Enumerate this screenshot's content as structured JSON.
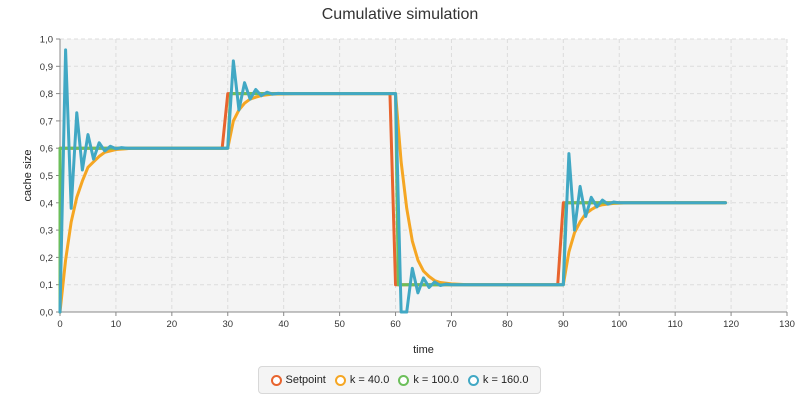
{
  "chart_data": {
    "type": "line",
    "title": "Cumulative simulation",
    "xlabel": "time",
    "ylabel": "cache size",
    "xlim": [
      0,
      130
    ],
    "ylim": [
      0,
      1
    ],
    "xticks": [
      "0",
      "10",
      "20",
      "30",
      "40",
      "50",
      "60",
      "70",
      "80",
      "90",
      "100",
      "110",
      "120",
      "130"
    ],
    "yticks": [
      "0,0",
      "0,1",
      "0,2",
      "0,3",
      "0,4",
      "0,5",
      "0,6",
      "0,7",
      "0,8",
      "0,9",
      "1,0"
    ],
    "grid": true,
    "legend_position": "bottom",
    "series": [
      {
        "name": "Setpoint",
        "color": "#e8642e",
        "points": [
          [
            0,
            0
          ],
          [
            0,
            0.6
          ],
          [
            29,
            0.6
          ],
          [
            30,
            0.8
          ],
          [
            59,
            0.8
          ],
          [
            60,
            0.1
          ],
          [
            89,
            0.1
          ],
          [
            90,
            0.4
          ],
          [
            119,
            0.4
          ]
        ]
      },
      {
        "name": "k = 40.0",
        "color": "#f5a623",
        "points": [
          [
            0,
            0
          ],
          [
            1,
            0.19
          ],
          [
            2,
            0.33
          ],
          [
            3,
            0.42
          ],
          [
            4,
            0.48
          ],
          [
            5,
            0.53
          ],
          [
            6,
            0.55
          ],
          [
            7,
            0.57
          ],
          [
            8,
            0.585
          ],
          [
            10,
            0.595
          ],
          [
            13,
            0.6
          ],
          [
            29,
            0.6
          ],
          [
            30,
            0.6
          ],
          [
            31,
            0.7
          ],
          [
            32,
            0.74
          ],
          [
            33,
            0.765
          ],
          [
            34,
            0.78
          ],
          [
            35,
            0.787
          ],
          [
            36,
            0.793
          ],
          [
            38,
            0.798
          ],
          [
            42,
            0.8
          ],
          [
            59,
            0.8
          ],
          [
            60,
            0.8
          ],
          [
            61,
            0.55
          ],
          [
            62,
            0.38
          ],
          [
            63,
            0.26
          ],
          [
            64,
            0.19
          ],
          [
            65,
            0.15
          ],
          [
            66,
            0.13
          ],
          [
            67,
            0.115
          ],
          [
            68,
            0.108
          ],
          [
            70,
            0.103
          ],
          [
            73,
            0.1
          ],
          [
            89,
            0.1
          ],
          [
            90,
            0.1
          ],
          [
            91,
            0.22
          ],
          [
            92,
            0.29
          ],
          [
            93,
            0.33
          ],
          [
            94,
            0.36
          ],
          [
            95,
            0.375
          ],
          [
            96,
            0.387
          ],
          [
            97,
            0.393
          ],
          [
            99,
            0.398
          ],
          [
            102,
            0.4
          ],
          [
            119,
            0.4
          ]
        ]
      },
      {
        "name": "k = 100.0",
        "color": "#6cbf5a",
        "points": [
          [
            0,
            0
          ],
          [
            0,
            0.6
          ],
          [
            29,
            0.6
          ],
          [
            30,
            0.6
          ],
          [
            30.5,
            0.8
          ],
          [
            59,
            0.8
          ],
          [
            60,
            0.8
          ],
          [
            60.5,
            0.1
          ],
          [
            89,
            0.1
          ],
          [
            90,
            0.1
          ],
          [
            90.5,
            0.4
          ],
          [
            119,
            0.4
          ]
        ]
      },
      {
        "name": "k = 160.0",
        "color": "#41a8c4",
        "points": [
          [
            0,
            0
          ],
          [
            1,
            0.96
          ],
          [
            2,
            0.38
          ],
          [
            3,
            0.73
          ],
          [
            4,
            0.52
          ],
          [
            5,
            0.65
          ],
          [
            6,
            0.56
          ],
          [
            7,
            0.62
          ],
          [
            8,
            0.59
          ],
          [
            9,
            0.607
          ],
          [
            10,
            0.598
          ],
          [
            11,
            0.602
          ],
          [
            12,
            0.6
          ],
          [
            29,
            0.6
          ],
          [
            30,
            0.6
          ],
          [
            31,
            0.92
          ],
          [
            32,
            0.74
          ],
          [
            33,
            0.84
          ],
          [
            34,
            0.78
          ],
          [
            35,
            0.815
          ],
          [
            36,
            0.792
          ],
          [
            37,
            0.805
          ],
          [
            38,
            0.798
          ],
          [
            39,
            0.801
          ],
          [
            40,
            0.8
          ],
          [
            59,
            0.8
          ],
          [
            60,
            0.8
          ],
          [
            61,
            0.0
          ],
          [
            62,
            0.0
          ],
          [
            63,
            0.16
          ],
          [
            64,
            0.07
          ],
          [
            65,
            0.125
          ],
          [
            66,
            0.09
          ],
          [
            67,
            0.11
          ],
          [
            68,
            0.097
          ],
          [
            69,
            0.102
          ],
          [
            70,
            0.1
          ],
          [
            89,
            0.1
          ],
          [
            90,
            0.1
          ],
          [
            91,
            0.58
          ],
          [
            92,
            0.3
          ],
          [
            93,
            0.46
          ],
          [
            94,
            0.35
          ],
          [
            95,
            0.42
          ],
          [
            96,
            0.385
          ],
          [
            97,
            0.41
          ],
          [
            98,
            0.395
          ],
          [
            99,
            0.403
          ],
          [
            100,
            0.4
          ],
          [
            119,
            0.4
          ]
        ]
      }
    ]
  }
}
